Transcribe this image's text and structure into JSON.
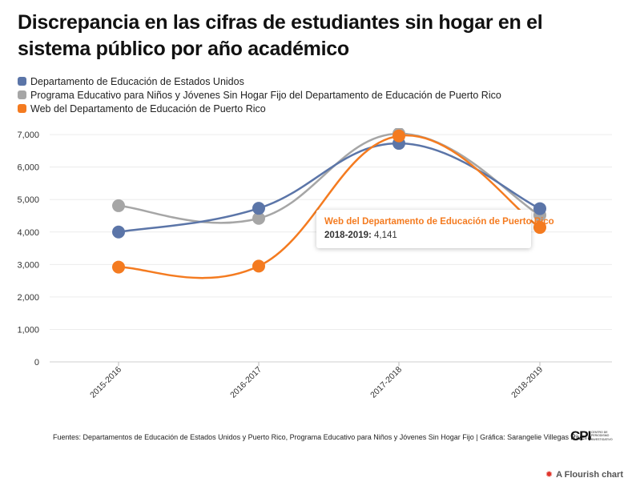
{
  "title": "Discrepancia en las cifras de estudiantes sin hogar en el sistema público por año académico",
  "chart_data": {
    "type": "line",
    "categories": [
      "2015-2016",
      "2016-2017",
      "2017-2018",
      "2018-2019"
    ],
    "series": [
      {
        "name": "Departamento de Educación de Estados Unidos",
        "color": "#5b75a8",
        "values": [
          4000,
          4730,
          6730,
          4720
        ]
      },
      {
        "name": "Programa Educativo para Niños y Jóvenes Sin Hogar Fijo del Departamento de Educación de Puerto Rico",
        "color": "#a6a6a6",
        "values": [
          4810,
          4420,
          7030,
          4520
        ]
      },
      {
        "name": "Web del Departamento de Educación de Puerto Rico",
        "color": "#f47b20",
        "values": [
          2920,
          2950,
          6960,
          4141
        ]
      }
    ],
    "ylim": [
      0,
      7000
    ],
    "yticks": [
      0,
      1000,
      2000,
      3000,
      4000,
      5000,
      6000,
      7000
    ],
    "ytick_labels": [
      "0",
      "1,000",
      "2,000",
      "3,000",
      "4,000",
      "5,000",
      "6,000",
      "7,000"
    ],
    "xlabel": "",
    "ylabel": "",
    "grid": true,
    "legend_position": "top-left"
  },
  "tooltip": {
    "title": "Web del Departamento de Educación de Puerto Rico",
    "label": "2018-2019:",
    "value": "4,141"
  },
  "source": "Fuentes: Departamentos de Educación de Estados Unidos y Puerto Rico, Programa Educativo para Niños y Jóvenes Sin Hogar Fijo | Gráfica: Sarangelie Villegas Rivera",
  "logo": {
    "text": "CPI",
    "subtext": "CENTRO DE PERIODISMO INVESTIGATIVO"
  },
  "flourish": {
    "icon": "flourish-star-icon",
    "text": "A Flourish chart"
  }
}
